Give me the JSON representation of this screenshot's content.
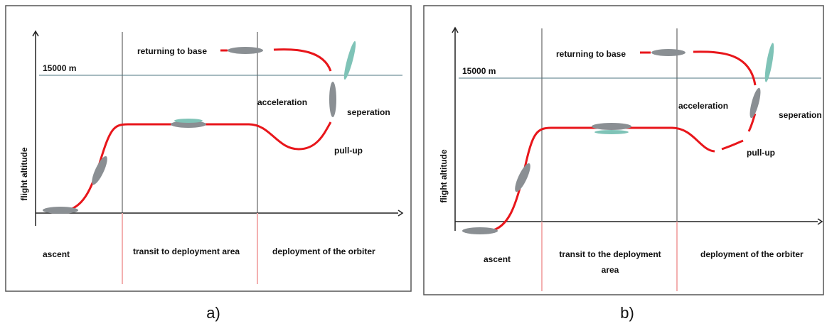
{
  "panels": [
    {
      "label": "a)",
      "y_axis_label": "flight altitude",
      "altitude_label": "15000 m",
      "annotations": {
        "return": "returning to base",
        "acceleration": "acceleration",
        "separation": "seperation",
        "pull_up": "pull-up"
      },
      "phases": [
        [
          "ascent"
        ],
        [
          "transit to deployment area"
        ],
        [
          "deployment of the orbiter"
        ]
      ]
    },
    {
      "label": "b)",
      "y_axis_label": "flight altitude",
      "altitude_label": "15000 m",
      "annotations": {
        "return": "returning to base",
        "acceleration": "acceleration",
        "separation": "seperation",
        "pull_up": "pull-up"
      },
      "phases": [
        [
          "ascent"
        ],
        [
          "transit to the deployment",
          "area"
        ],
        [
          "deployment of the orbiter"
        ]
      ]
    }
  ]
}
